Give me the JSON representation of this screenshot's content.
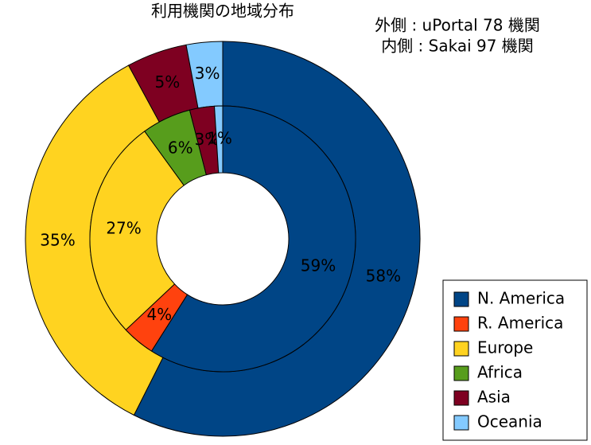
{
  "chart_data": {
    "type": "donut",
    "title": "利用機関の地域分布",
    "annotations": [
      "外側 : uPortal 78 機関",
      "内側 : Sakai 97 機関"
    ],
    "categories": [
      "N. America",
      "R. America",
      "Europe",
      "Africa",
      "Asia",
      "Oceania"
    ],
    "colors": [
      "#004586",
      "#ff420e",
      "#ffd320",
      "#579d1c",
      "#7e0021",
      "#83caff"
    ],
    "series": [
      {
        "values": [
          58,
          null,
          35,
          null,
          5,
          3
        ],
        "value_labels": [
          "58%",
          null,
          "35%",
          null,
          "5%",
          "3%"
        ]
      },
      {
        "values": [
          59,
          4,
          27,
          6,
          3,
          1
        ],
        "value_labels": [
          "59%",
          "4%",
          "27%",
          "6%",
          "3%",
          "1%"
        ]
      }
    ],
    "legend": "lower right"
  }
}
